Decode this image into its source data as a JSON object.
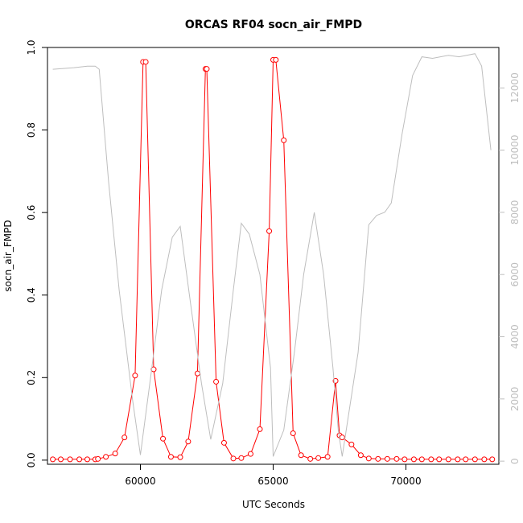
{
  "chart_data": {
    "type": "line",
    "title": "ORCAS RF04 socn_air_FMPD",
    "xlabel": "UTC Seconds",
    "ylabel": "socn_air_FMPD",
    "xlim": [
      56500,
      73500
    ],
    "ylim": [
      -0.01,
      1.0
    ],
    "ylim_right": [
      -100,
      13300
    ],
    "x_ticks": [
      60000,
      65000,
      70000
    ],
    "y_ticks": [
      0.0,
      0.2,
      0.4,
      0.6,
      0.8,
      1.0
    ],
    "y_ticks_right": [
      0,
      2000,
      4000,
      6000,
      8000,
      10000,
      12000
    ],
    "grid": false,
    "legend": "none",
    "series": [
      {
        "axis": "left",
        "color": "#ff0000",
        "style": "line+open-circle",
        "x": [
          56700,
          57000,
          57350,
          57700,
          58000,
          58300,
          58400,
          58700,
          59050,
          59400,
          59800,
          60100,
          60200,
          60500,
          60850,
          61150,
          61500,
          61800,
          62150,
          62450,
          62500,
          62850,
          63150,
          63500,
          63800,
          64150,
          64500,
          64850,
          65000,
          65100,
          65400,
          65750,
          66050,
          66400,
          66700,
          67050,
          67350,
          67500,
          67600,
          67950,
          68300,
          68600,
          68950,
          69300,
          69650,
          69950,
          70300,
          70600,
          70950,
          71250,
          71600,
          71950,
          72250,
          72600,
          72950,
          73250
        ],
        "y": [
          0.002,
          0.002,
          0.002,
          0.002,
          0.002,
          0.002,
          0.003,
          0.008,
          0.016,
          0.055,
          0.205,
          0.965,
          0.965,
          0.22,
          0.052,
          0.008,
          0.007,
          0.045,
          0.21,
          0.948,
          0.948,
          0.19,
          0.042,
          0.004,
          0.005,
          0.015,
          0.075,
          0.555,
          0.97,
          0.97,
          0.775,
          0.065,
          0.012,
          0.003,
          0.005,
          0.008,
          0.192,
          0.06,
          0.055,
          0.038,
          0.012,
          0.004,
          0.003,
          0.003,
          0.003,
          0.002,
          0.002,
          0.002,
          0.002,
          0.002,
          0.002,
          0.002,
          0.002,
          0.002,
          0.002,
          0.002
        ]
      },
      {
        "axis": "right",
        "color": "#bebebe",
        "style": "line",
        "x": [
          56700,
          57500,
          58000,
          58300,
          58450,
          58800,
          59200,
          59700,
          60000,
          60400,
          60800,
          61200,
          61500,
          61900,
          62300,
          62650,
          63100,
          63500,
          63800,
          64100,
          64500,
          64900,
          65000,
          65400,
          65800,
          66150,
          66550,
          66900,
          67250,
          67450,
          67600,
          67750,
          68200,
          68600,
          68900,
          69200,
          69450,
          69850,
          70250,
          70600,
          71000,
          71600,
          72000,
          72600,
          72850,
          73200
        ],
        "y": [
          12600,
          12650,
          12700,
          12700,
          12600,
          9000,
          5500,
          2000,
          200,
          2800,
          5500,
          7200,
          7550,
          5000,
          2500,
          700,
          2500,
          5500,
          7650,
          7300,
          6000,
          3000,
          150,
          1000,
          3500,
          6000,
          8000,
          6000,
          3000,
          1000,
          150,
          1000,
          3500,
          7600,
          7900,
          8000,
          8300,
          10500,
          12400,
          13000,
          12950,
          13050,
          13000,
          13100,
          12700,
          10000
        ]
      }
    ]
  }
}
